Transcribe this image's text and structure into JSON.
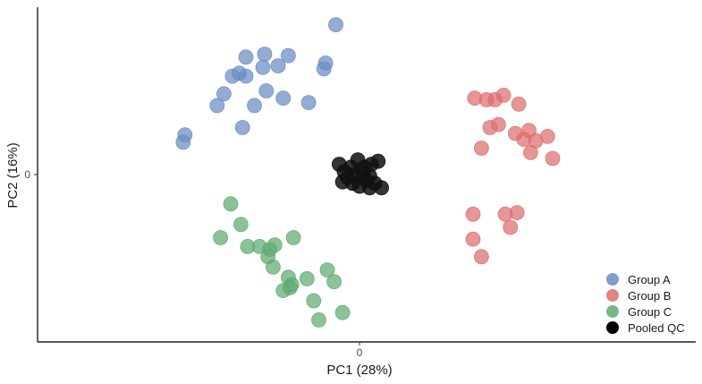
{
  "chart_data": {
    "type": "scatter",
    "title": "",
    "xlabel": "PC1 (28%)",
    "ylabel": "PC2 (16%)",
    "xticks": [
      "0"
    ],
    "yticks": [
      "0"
    ],
    "grid": false,
    "legend_position": "bottom-right",
    "xlim": [
      -9.5,
      9.5
    ],
    "ylim": [
      -5.7,
      5.7
    ],
    "series": [
      {
        "name": "Group A",
        "color": "#6A8CC2",
        "points": [
          [
            -0.7,
            5.1
          ],
          [
            -1.0,
            3.8
          ],
          [
            -1.05,
            3.6
          ],
          [
            -2.1,
            4.05
          ],
          [
            -2.4,
            3.7
          ],
          [
            -2.8,
            4.1
          ],
          [
            -2.85,
            3.65
          ],
          [
            -3.35,
            4.0
          ],
          [
            -3.55,
            3.45
          ],
          [
            -3.35,
            3.35
          ],
          [
            -2.25,
            2.6
          ],
          [
            -2.75,
            2.85
          ],
          [
            -3.1,
            2.35
          ],
          [
            -3.45,
            1.6
          ],
          [
            -1.5,
            2.45
          ],
          [
            -3.75,
            3.35
          ],
          [
            -4.0,
            2.75
          ],
          [
            -4.2,
            2.35
          ],
          [
            -5.15,
            1.35
          ],
          [
            -5.2,
            1.1
          ]
        ]
      },
      {
        "name": "Group B",
        "color": "#DC6E6E",
        "points": [
          [
            3.4,
            2.6
          ],
          [
            3.75,
            2.55
          ],
          [
            4.0,
            2.55
          ],
          [
            4.25,
            2.7
          ],
          [
            4.7,
            2.4
          ],
          [
            3.85,
            1.6
          ],
          [
            4.1,
            1.7
          ],
          [
            4.6,
            1.4
          ],
          [
            4.85,
            1.2
          ],
          [
            5.0,
            1.5
          ],
          [
            5.2,
            1.15
          ],
          [
            5.55,
            1.3
          ],
          [
            5.05,
            0.75
          ],
          [
            5.7,
            0.55
          ],
          [
            3.6,
            0.9
          ],
          [
            3.35,
            -1.35
          ],
          [
            4.3,
            -1.35
          ],
          [
            4.65,
            -1.3
          ],
          [
            4.45,
            -1.8
          ],
          [
            3.35,
            -2.2
          ],
          [
            3.6,
            -2.8
          ]
        ]
      },
      {
        "name": "Group C",
        "color": "#5FAA70",
        "points": [
          [
            -3.8,
            -1.0
          ],
          [
            -3.5,
            -1.7
          ],
          [
            -4.1,
            -2.15
          ],
          [
            -3.3,
            -2.45
          ],
          [
            -2.95,
            -2.45
          ],
          [
            -2.5,
            -2.4
          ],
          [
            -2.65,
            -2.55
          ],
          [
            -2.7,
            -2.8
          ],
          [
            -2.55,
            -3.15
          ],
          [
            -1.95,
            -2.15
          ],
          [
            -2.1,
            -3.5
          ],
          [
            -2.05,
            -3.85
          ],
          [
            -2.25,
            -3.95
          ],
          [
            -1.55,
            -3.55
          ],
          [
            -0.95,
            -3.25
          ],
          [
            -0.75,
            -3.65
          ],
          [
            -1.35,
            -4.3
          ],
          [
            -0.5,
            -4.7
          ],
          [
            -1.2,
            -4.95
          ],
          [
            -2.0,
            -3.75
          ]
        ]
      },
      {
        "name": "Pooled QC",
        "color": "#111111",
        "points": [
          [
            -0.6,
            0.35
          ],
          [
            -0.25,
            0.25
          ],
          [
            -0.05,
            0.5
          ],
          [
            0.35,
            0.35
          ],
          [
            0.55,
            0.45
          ],
          [
            -0.45,
            0.1
          ],
          [
            -0.15,
            0.0
          ],
          [
            0.1,
            0.05
          ],
          [
            0.3,
            -0.05
          ],
          [
            -0.5,
            -0.25
          ],
          [
            -0.2,
            -0.3
          ],
          [
            0.0,
            -0.4
          ],
          [
            0.2,
            -0.2
          ],
          [
            0.45,
            -0.3
          ],
          [
            0.65,
            -0.45
          ],
          [
            0.3,
            -0.45
          ],
          [
            0.15,
            0.25
          ],
          [
            -0.35,
            -0.1
          ]
        ]
      }
    ]
  },
  "legend": {
    "items": [
      {
        "label": "Group A",
        "color": "#6A8CC2"
      },
      {
        "label": "Group B",
        "color": "#DC6E6E"
      },
      {
        "label": "Group C",
        "color": "#5FAA70"
      },
      {
        "label": "Pooled QC",
        "color": "#111111"
      }
    ]
  },
  "axes": {
    "x_title": "PC1 (28%)",
    "y_title": "PC2 (16%)",
    "x_tick": "0",
    "y_tick": "0"
  }
}
